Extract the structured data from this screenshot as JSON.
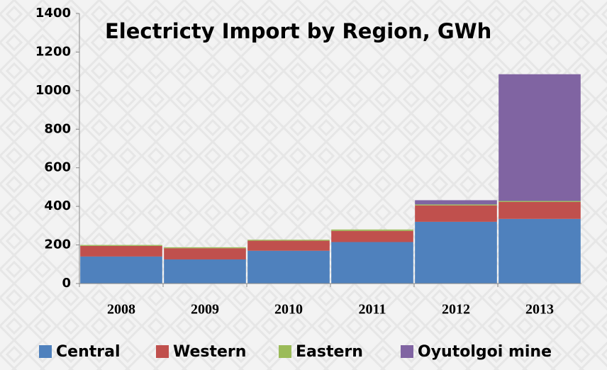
{
  "chart_data": {
    "type": "stacked_bar",
    "title": "Electricty Import by Region, GWh",
    "categories": [
      "2008",
      "2009",
      "2010",
      "2011",
      "2012",
      "2013"
    ],
    "series": [
      {
        "name": "Central",
        "color": "#4f81bd",
        "values": [
          140,
          125,
          170,
          215,
          320,
          335
        ]
      },
      {
        "name": "Western",
        "color": "#c0504d",
        "values": [
          55,
          58,
          52,
          58,
          85,
          88
        ]
      },
      {
        "name": "Eastern",
        "color": "#9bbb59",
        "values": [
          5,
          5,
          5,
          7,
          5,
          5
        ]
      },
      {
        "name": "Oyutolgoi mine",
        "color": "#8064a2",
        "values": [
          0,
          0,
          0,
          0,
          22,
          657
        ]
      }
    ],
    "ylim": [
      0,
      1400
    ],
    "yticks": [
      0,
      200,
      400,
      600,
      800,
      1000,
      1200,
      1400
    ],
    "grid": false
  }
}
